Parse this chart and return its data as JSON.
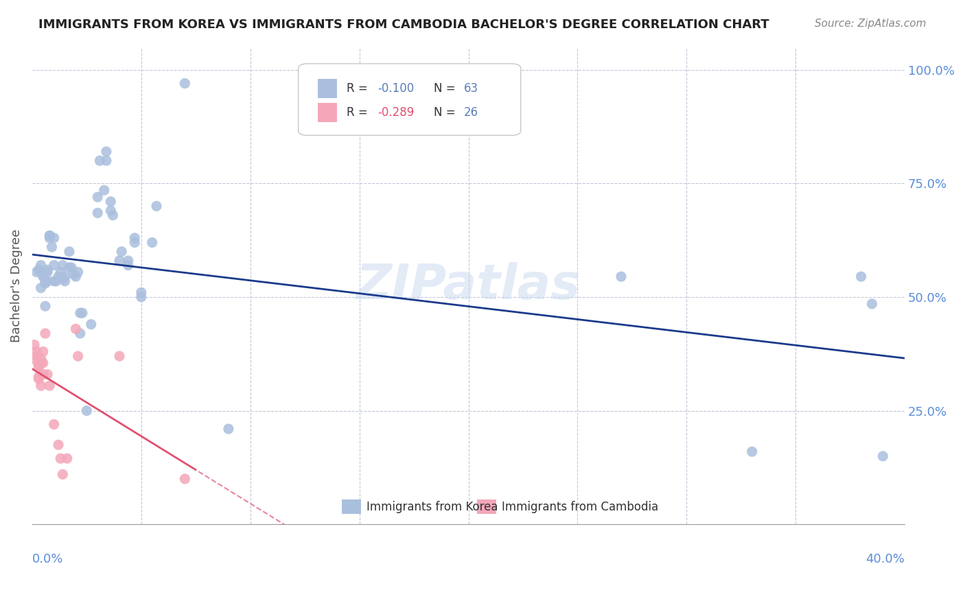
{
  "title": "IMMIGRANTS FROM KOREA VS IMMIGRANTS FROM CAMBODIA BACHELOR'S DEGREE CORRELATION CHART",
  "source": "Source: ZipAtlas.com",
  "ylabel": "Bachelor's Degree",
  "ytick_labels": [
    "100.0%",
    "75.0%",
    "50.0%",
    "25.0%"
  ],
  "ytick_values": [
    1.0,
    0.75,
    0.5,
    0.25
  ],
  "xlim": [
    0.0,
    0.4
  ],
  "ylim": [
    0.0,
    1.05
  ],
  "korea_color": "#aabfdd",
  "cambodia_color": "#f4a7b9",
  "korea_line_color": "#1a3a8c",
  "cambodia_line_color": "#e05070",
  "watermark": "ZIPatlas",
  "korea_points": [
    [
      0.002,
      0.555
    ],
    [
      0.003,
      0.56
    ],
    [
      0.004,
      0.52
    ],
    [
      0.004,
      0.57
    ],
    [
      0.005,
      0.545
    ],
    [
      0.005,
      0.55
    ],
    [
      0.006,
      0.535
    ],
    [
      0.006,
      0.53
    ],
    [
      0.006,
      0.48
    ],
    [
      0.007,
      0.555
    ],
    [
      0.007,
      0.535
    ],
    [
      0.007,
      0.56
    ],
    [
      0.008,
      0.63
    ],
    [
      0.008,
      0.635
    ],
    [
      0.008,
      0.635
    ],
    [
      0.009,
      0.61
    ],
    [
      0.01,
      0.63
    ],
    [
      0.01,
      0.57
    ],
    [
      0.01,
      0.535
    ],
    [
      0.011,
      0.535
    ],
    [
      0.012,
      0.545
    ],
    [
      0.013,
      0.555
    ],
    [
      0.014,
      0.57
    ],
    [
      0.014,
      0.54
    ],
    [
      0.015,
      0.545
    ],
    [
      0.015,
      0.535
    ],
    [
      0.017,
      0.6
    ],
    [
      0.017,
      0.565
    ],
    [
      0.018,
      0.565
    ],
    [
      0.019,
      0.55
    ],
    [
      0.02,
      0.545
    ],
    [
      0.021,
      0.555
    ],
    [
      0.022,
      0.42
    ],
    [
      0.022,
      0.465
    ],
    [
      0.023,
      0.465
    ],
    [
      0.025,
      0.25
    ],
    [
      0.027,
      0.44
    ],
    [
      0.03,
      0.72
    ],
    [
      0.03,
      0.685
    ],
    [
      0.031,
      0.8
    ],
    [
      0.033,
      0.735
    ],
    [
      0.034,
      0.82
    ],
    [
      0.034,
      0.8
    ],
    [
      0.036,
      0.71
    ],
    [
      0.036,
      0.69
    ],
    [
      0.037,
      0.68
    ],
    [
      0.04,
      0.58
    ],
    [
      0.041,
      0.6
    ],
    [
      0.044,
      0.58
    ],
    [
      0.044,
      0.57
    ],
    [
      0.047,
      0.63
    ],
    [
      0.047,
      0.62
    ],
    [
      0.05,
      0.5
    ],
    [
      0.05,
      0.51
    ],
    [
      0.055,
      0.62
    ],
    [
      0.057,
      0.7
    ],
    [
      0.07,
      0.97
    ],
    [
      0.09,
      0.21
    ],
    [
      0.27,
      0.545
    ],
    [
      0.38,
      0.545
    ],
    [
      0.385,
      0.485
    ],
    [
      0.33,
      0.16
    ],
    [
      0.39,
      0.15
    ]
  ],
  "cambodia_points": [
    [
      0.001,
      0.395
    ],
    [
      0.002,
      0.38
    ],
    [
      0.002,
      0.37
    ],
    [
      0.002,
      0.36
    ],
    [
      0.003,
      0.35
    ],
    [
      0.003,
      0.345
    ],
    [
      0.003,
      0.325
    ],
    [
      0.003,
      0.32
    ],
    [
      0.004,
      0.365
    ],
    [
      0.004,
      0.355
    ],
    [
      0.004,
      0.305
    ],
    [
      0.005,
      0.38
    ],
    [
      0.005,
      0.355
    ],
    [
      0.005,
      0.33
    ],
    [
      0.006,
      0.42
    ],
    [
      0.007,
      0.33
    ],
    [
      0.008,
      0.305
    ],
    [
      0.01,
      0.22
    ],
    [
      0.012,
      0.175
    ],
    [
      0.013,
      0.145
    ],
    [
      0.014,
      0.11
    ],
    [
      0.016,
      0.145
    ],
    [
      0.02,
      0.43
    ],
    [
      0.021,
      0.37
    ],
    [
      0.04,
      0.37
    ],
    [
      0.07,
      0.1
    ]
  ]
}
